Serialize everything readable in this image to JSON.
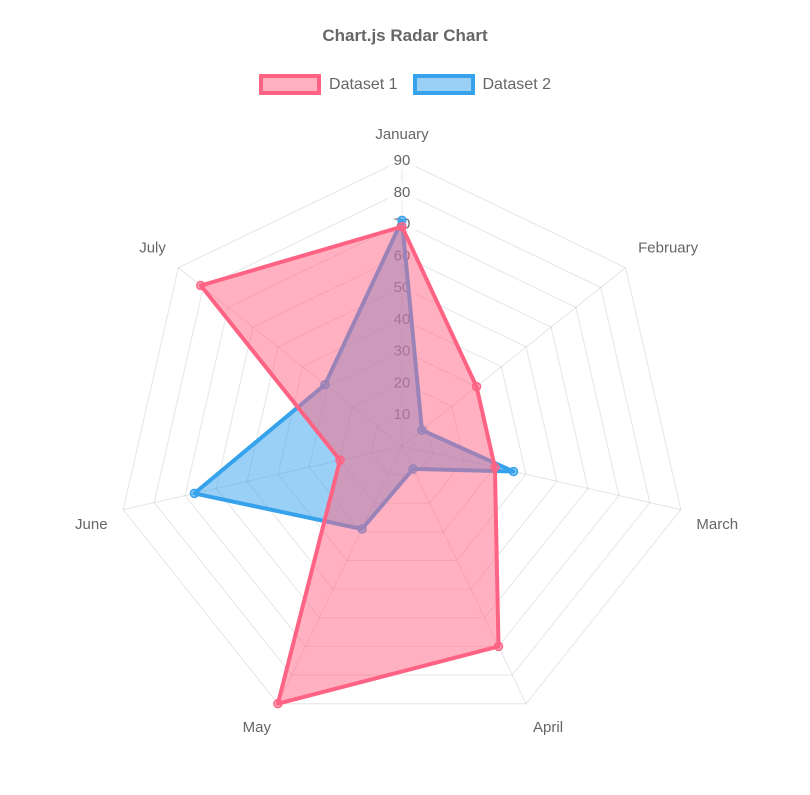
{
  "title": "Chart.js Radar Chart",
  "chart_data": {
    "type": "radar",
    "categories": [
      "January",
      "February",
      "March",
      "April",
      "May",
      "June",
      "July"
    ],
    "series": [
      {
        "name": "Dataset 1",
        "values": [
          69,
          30,
          30,
          70,
          90,
          20,
          81
        ],
        "border_color": "#FF6384",
        "fill_color": "rgba(255,99,132,0.5)"
      },
      {
        "name": "Dataset 2",
        "values": [
          71,
          8,
          36,
          8,
          29,
          67,
          31
        ],
        "border_color": "#36A2EB",
        "fill_color": "rgba(54,162,235,0.5)"
      }
    ],
    "scale": {
      "min": 0,
      "max": 90,
      "tick_step": 10,
      "tick_labels": [
        "10",
        "20",
        "30",
        "40",
        "50",
        "60",
        "70",
        "80",
        "90"
      ]
    },
    "legend_position": "top",
    "grid": true,
    "grid_color": "rgba(0,0,0,0.1)",
    "tick_color": "#666",
    "tick_backdrop_color": "rgba(255,255,255,0.75)",
    "point_label_color": "#666"
  }
}
